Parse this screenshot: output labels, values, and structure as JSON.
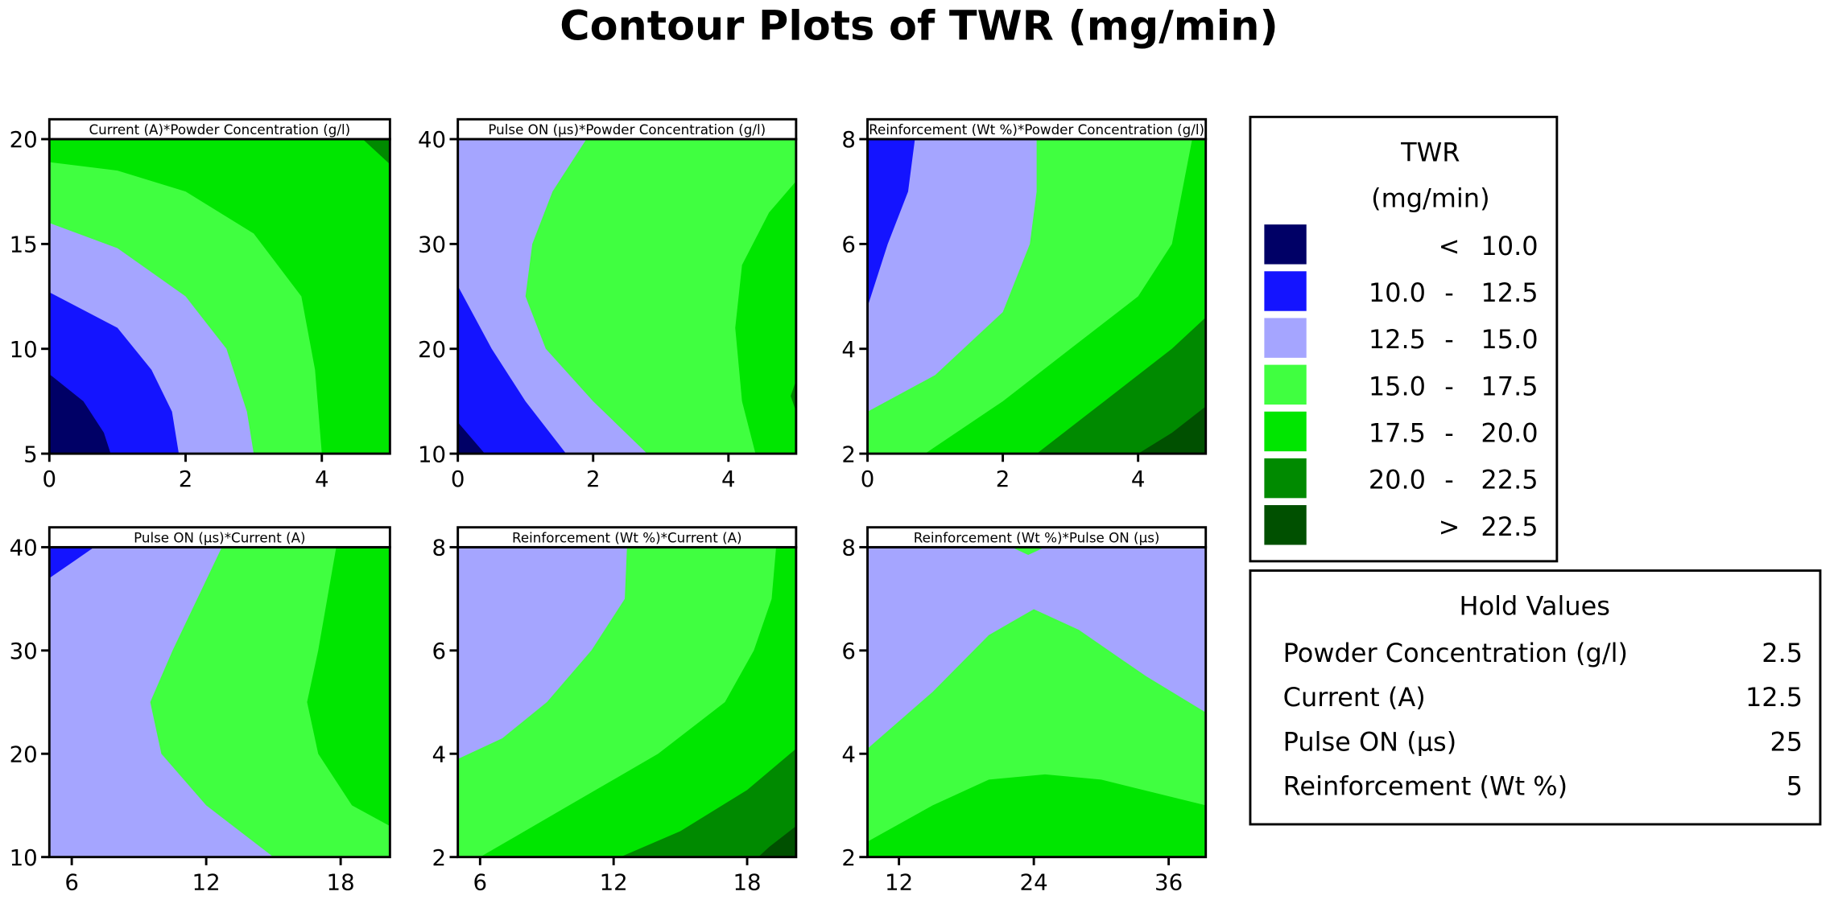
{
  "chart_data": {
    "type": "contour",
    "title": "Contour Plots of TWR (mg/min)",
    "levels": [
      {
        "key": "<10.0",
        "lo": "",
        "sep": "<",
        "hi": "10.0",
        "color": "#000066"
      },
      {
        "key": "10.0-12.5",
        "lo": "10.0",
        "sep": "-",
        "hi": "12.5",
        "color": "#1414ff"
      },
      {
        "key": "12.5-15.0",
        "lo": "12.5",
        "sep": "-",
        "hi": "15.0",
        "color": "#a5a5ff"
      },
      {
        "key": "15.0-17.5",
        "lo": "15.0",
        "sep": "-",
        "hi": "17.5",
        "color": "#40ff40"
      },
      {
        "key": "17.5-20.0",
        "lo": "17.5",
        "sep": "-",
        "hi": "20.0",
        "color": "#00e600"
      },
      {
        "key": "20.0-22.5",
        "lo": "20.0",
        "sep": "-",
        "hi": "22.5",
        "color": "#008a00"
      },
      {
        "key": ">22.5",
        "lo": "",
        "sep": ">",
        "hi": "22.5",
        "color": "#005000"
      }
    ],
    "panels": [
      {
        "title": "Current (A)*Powder Concentration (g/l)",
        "xlim": [
          0,
          5
        ],
        "ylim": [
          5,
          20
        ],
        "xticks": [
          0,
          2,
          4
        ],
        "yticks": [
          5,
          10,
          15,
          20
        ],
        "base": "17.5-20.0",
        "regions": [
          {
            "level": "15.0-17.5",
            "points": [
              [
                0,
                5
              ],
              [
                0,
                18.9
              ],
              [
                1,
                18.5
              ],
              [
                2,
                17.5
              ],
              [
                3,
                15.5
              ],
              [
                3.7,
                12.5
              ],
              [
                3.9,
                9
              ],
              [
                4,
                5
              ]
            ]
          },
          {
            "level": "12.5-15.0",
            "points": [
              [
                0,
                5
              ],
              [
                0,
                16
              ],
              [
                1,
                14.8
              ],
              [
                2,
                12.5
              ],
              [
                2.6,
                10
              ],
              [
                2.9,
                7
              ],
              [
                3,
                5
              ]
            ]
          },
          {
            "level": "10.0-12.5",
            "points": [
              [
                0,
                5
              ],
              [
                0,
                12.7
              ],
              [
                1,
                11
              ],
              [
                1.5,
                9
              ],
              [
                1.8,
                7
              ],
              [
                1.9,
                5
              ]
            ]
          },
          {
            "level": "<10.0",
            "points": [
              [
                0,
                5
              ],
              [
                0,
                8.8
              ],
              [
                0.5,
                7.5
              ],
              [
                0.8,
                6
              ],
              [
                0.9,
                5
              ]
            ]
          },
          {
            "level": "20.0-22.5",
            "points": [
              [
                4.6,
                20
              ],
              [
                5,
                20
              ],
              [
                5,
                18.8
              ]
            ]
          }
        ]
      },
      {
        "title": "Pulse ON (µs)*Powder Concentration (g/l)",
        "xlim": [
          0,
          5
        ],
        "ylim": [
          10,
          40
        ],
        "xticks": [
          0,
          2,
          4
        ],
        "yticks": [
          10,
          20,
          30,
          40
        ],
        "base": "15.0-17.5",
        "regions": [
          {
            "level": "17.5-20.0",
            "points": [
              [
                5,
                36
              ],
              [
                4.6,
                33
              ],
              [
                4.2,
                28
              ],
              [
                4.1,
                22
              ],
              [
                4.2,
                15
              ],
              [
                4.4,
                10
              ],
              [
                5,
                10
              ]
            ]
          },
          {
            "level": "20.0-22.5",
            "points": [
              [
                5,
                17
              ],
              [
                4.92,
                15.5
              ],
              [
                5,
                14
              ]
            ]
          },
          {
            "level": "12.5-15.0",
            "points": [
              [
                0,
                40
              ],
              [
                1.9,
                40
              ],
              [
                1.4,
                35
              ],
              [
                1.1,
                30
              ],
              [
                1,
                25
              ],
              [
                1.3,
                20
              ],
              [
                2,
                15
              ],
              [
                2.8,
                10
              ],
              [
                0,
                10
              ]
            ]
          },
          {
            "level": "10.0-12.5",
            "points": [
              [
                0,
                26
              ],
              [
                0.5,
                20
              ],
              [
                1,
                15
              ],
              [
                1.6,
                10
              ],
              [
                0,
                10
              ]
            ]
          },
          {
            "level": "<10.0",
            "points": [
              [
                0,
                13
              ],
              [
                0.4,
                10
              ],
              [
                0,
                10
              ]
            ]
          }
        ]
      },
      {
        "title": "Reinforcement (Wt %)*Powder Concentration (g/l)",
        "xlim": [
          0,
          5
        ],
        "ylim": [
          2,
          8
        ],
        "xticks": [
          0,
          2,
          4
        ],
        "yticks": [
          2,
          4,
          6,
          8
        ],
        "base": "15.0-17.5",
        "regions": [
          {
            "level": "17.5-20.0",
            "points": [
              [
                4.8,
                8
              ],
              [
                5,
                8
              ],
              [
                5,
                2
              ],
              [
                0.85,
                2
              ],
              [
                2,
                3
              ],
              [
                3,
                4
              ],
              [
                4,
                5
              ],
              [
                4.5,
                6
              ]
            ]
          },
          {
            "level": "20.0-22.5",
            "points": [
              [
                5,
                4.6
              ],
              [
                4.5,
                4
              ],
              [
                3.5,
                3
              ],
              [
                2.5,
                2
              ],
              [
                5,
                2
              ]
            ]
          },
          {
            "level": ">22.5",
            "points": [
              [
                5,
                2.9
              ],
              [
                4.5,
                2.4
              ],
              [
                4,
                2
              ],
              [
                5,
                2
              ]
            ]
          },
          {
            "level": "12.5-15.0",
            "points": [
              [
                0,
                2.8
              ],
              [
                1,
                3.5
              ],
              [
                2,
                4.7
              ],
              [
                2.4,
                6
              ],
              [
                2.5,
                7
              ],
              [
                2.5,
                8
              ],
              [
                0,
                8
              ]
            ]
          },
          {
            "level": "10.0-12.5",
            "points": [
              [
                0,
                8
              ],
              [
                0.7,
                8
              ],
              [
                0.6,
                7
              ],
              [
                0.3,
                6
              ],
              [
                0,
                4.8
              ]
            ]
          }
        ]
      },
      {
        "title": "Pulse ON (µs)*Current (A)",
        "xlim": [
          5,
          20.2
        ],
        "ylim": [
          10,
          40
        ],
        "xticks": [
          6,
          12,
          18
        ],
        "yticks": [
          10,
          20,
          30,
          40
        ],
        "base": "12.5-15.0",
        "regions": [
          {
            "level": "15.0-17.5",
            "points": [
              [
                12.7,
                40
              ],
              [
                20.2,
                40
              ],
              [
                20.2,
                10
              ],
              [
                15,
                10
              ],
              [
                12,
                15
              ],
              [
                10,
                20
              ],
              [
                9.5,
                25
              ],
              [
                10.5,
                30
              ]
            ]
          },
          {
            "level": "17.5-20.0",
            "points": [
              [
                17.8,
                40
              ],
              [
                20.2,
                40
              ],
              [
                20.2,
                13
              ],
              [
                18.5,
                15
              ],
              [
                17,
                20
              ],
              [
                16.5,
                25
              ],
              [
                17,
                30
              ]
            ]
          },
          {
            "level": "10.0-12.5",
            "points": [
              [
                5,
                40
              ],
              [
                7,
                40
              ],
              [
                6,
                38.5
              ],
              [
                5,
                37
              ]
            ]
          }
        ]
      },
      {
        "title": "Reinforcement (Wt %)*Current (A)",
        "xlim": [
          5,
          20.2
        ],
        "ylim": [
          2,
          8
        ],
        "xticks": [
          6,
          12,
          18
        ],
        "yticks": [
          2,
          4,
          6,
          8
        ],
        "base": "15.0-17.5",
        "regions": [
          {
            "level": "12.5-15.0",
            "points": [
              [
                5,
                8
              ],
              [
                12.6,
                8
              ],
              [
                12.5,
                7
              ],
              [
                11,
                6
              ],
              [
                9,
                5
              ],
              [
                7,
                4.3
              ],
              [
                5,
                3.9
              ]
            ]
          },
          {
            "level": "17.5-20.0",
            "points": [
              [
                19.3,
                8
              ],
              [
                20.2,
                8
              ],
              [
                20.2,
                2
              ],
              [
                6,
                2
              ],
              [
                10,
                3
              ],
              [
                14,
                4
              ],
              [
                17,
                5
              ],
              [
                18.3,
                6
              ],
              [
                19.1,
                7
              ]
            ]
          },
          {
            "level": "20.0-22.5",
            "points": [
              [
                20.2,
                4.1
              ],
              [
                18,
                3.3
              ],
              [
                15,
                2.5
              ],
              [
                12.3,
                2
              ],
              [
                20.2,
                2
              ]
            ]
          },
          {
            "level": ">22.5",
            "points": [
              [
                20.2,
                2.6
              ],
              [
                19,
                2.2
              ],
              [
                18.5,
                2
              ],
              [
                20.2,
                2
              ]
            ]
          }
        ]
      },
      {
        "title": "Reinforcement (Wt %)*Pulse ON (µs)",
        "xlim": [
          9.2,
          39.3
        ],
        "ylim": [
          2,
          8
        ],
        "xticks": [
          12,
          24,
          36
        ],
        "yticks": [
          2,
          4,
          6,
          8
        ],
        "base": "12.5-15.0",
        "regions": [
          {
            "level": "15.0-17.5",
            "points": [
              [
                9.2,
                2
              ],
              [
                9.2,
                4.1
              ],
              [
                15,
                5.2
              ],
              [
                20,
                6.3
              ],
              [
                24,
                6.8
              ],
              [
                28,
                6.4
              ],
              [
                34,
                5.5
              ],
              [
                39.3,
                4.8
              ],
              [
                39.3,
                2
              ]
            ]
          },
          {
            "level": "17.5-20.0",
            "points": [
              [
                9.2,
                2
              ],
              [
                9.2,
                2.3
              ],
              [
                15,
                3
              ],
              [
                20,
                3.5
              ],
              [
                25,
                3.6
              ],
              [
                30,
                3.5
              ],
              [
                39.3,
                3.0
              ],
              [
                39.3,
                2
              ]
            ]
          },
          {
            "level": "15.0-17.5",
            "points": [
              [
                22,
                8
              ],
              [
                23.5,
                7.85
              ],
              [
                25,
                8
              ]
            ]
          }
        ]
      }
    ],
    "legend": {
      "title": "TWR",
      "units": "(mg/min)",
      "placement": "right"
    },
    "hold_values": {
      "title": "Hold Values",
      "rows": [
        {
          "name": "Powder Concentration (g/l)",
          "value": "2.5"
        },
        {
          "name": "Current (A)",
          "value": "12.5"
        },
        {
          "name": "Pulse ON (µs)",
          "value": "25"
        },
        {
          "name": "Reinforcement (Wt %)",
          "value": "5"
        }
      ]
    }
  }
}
